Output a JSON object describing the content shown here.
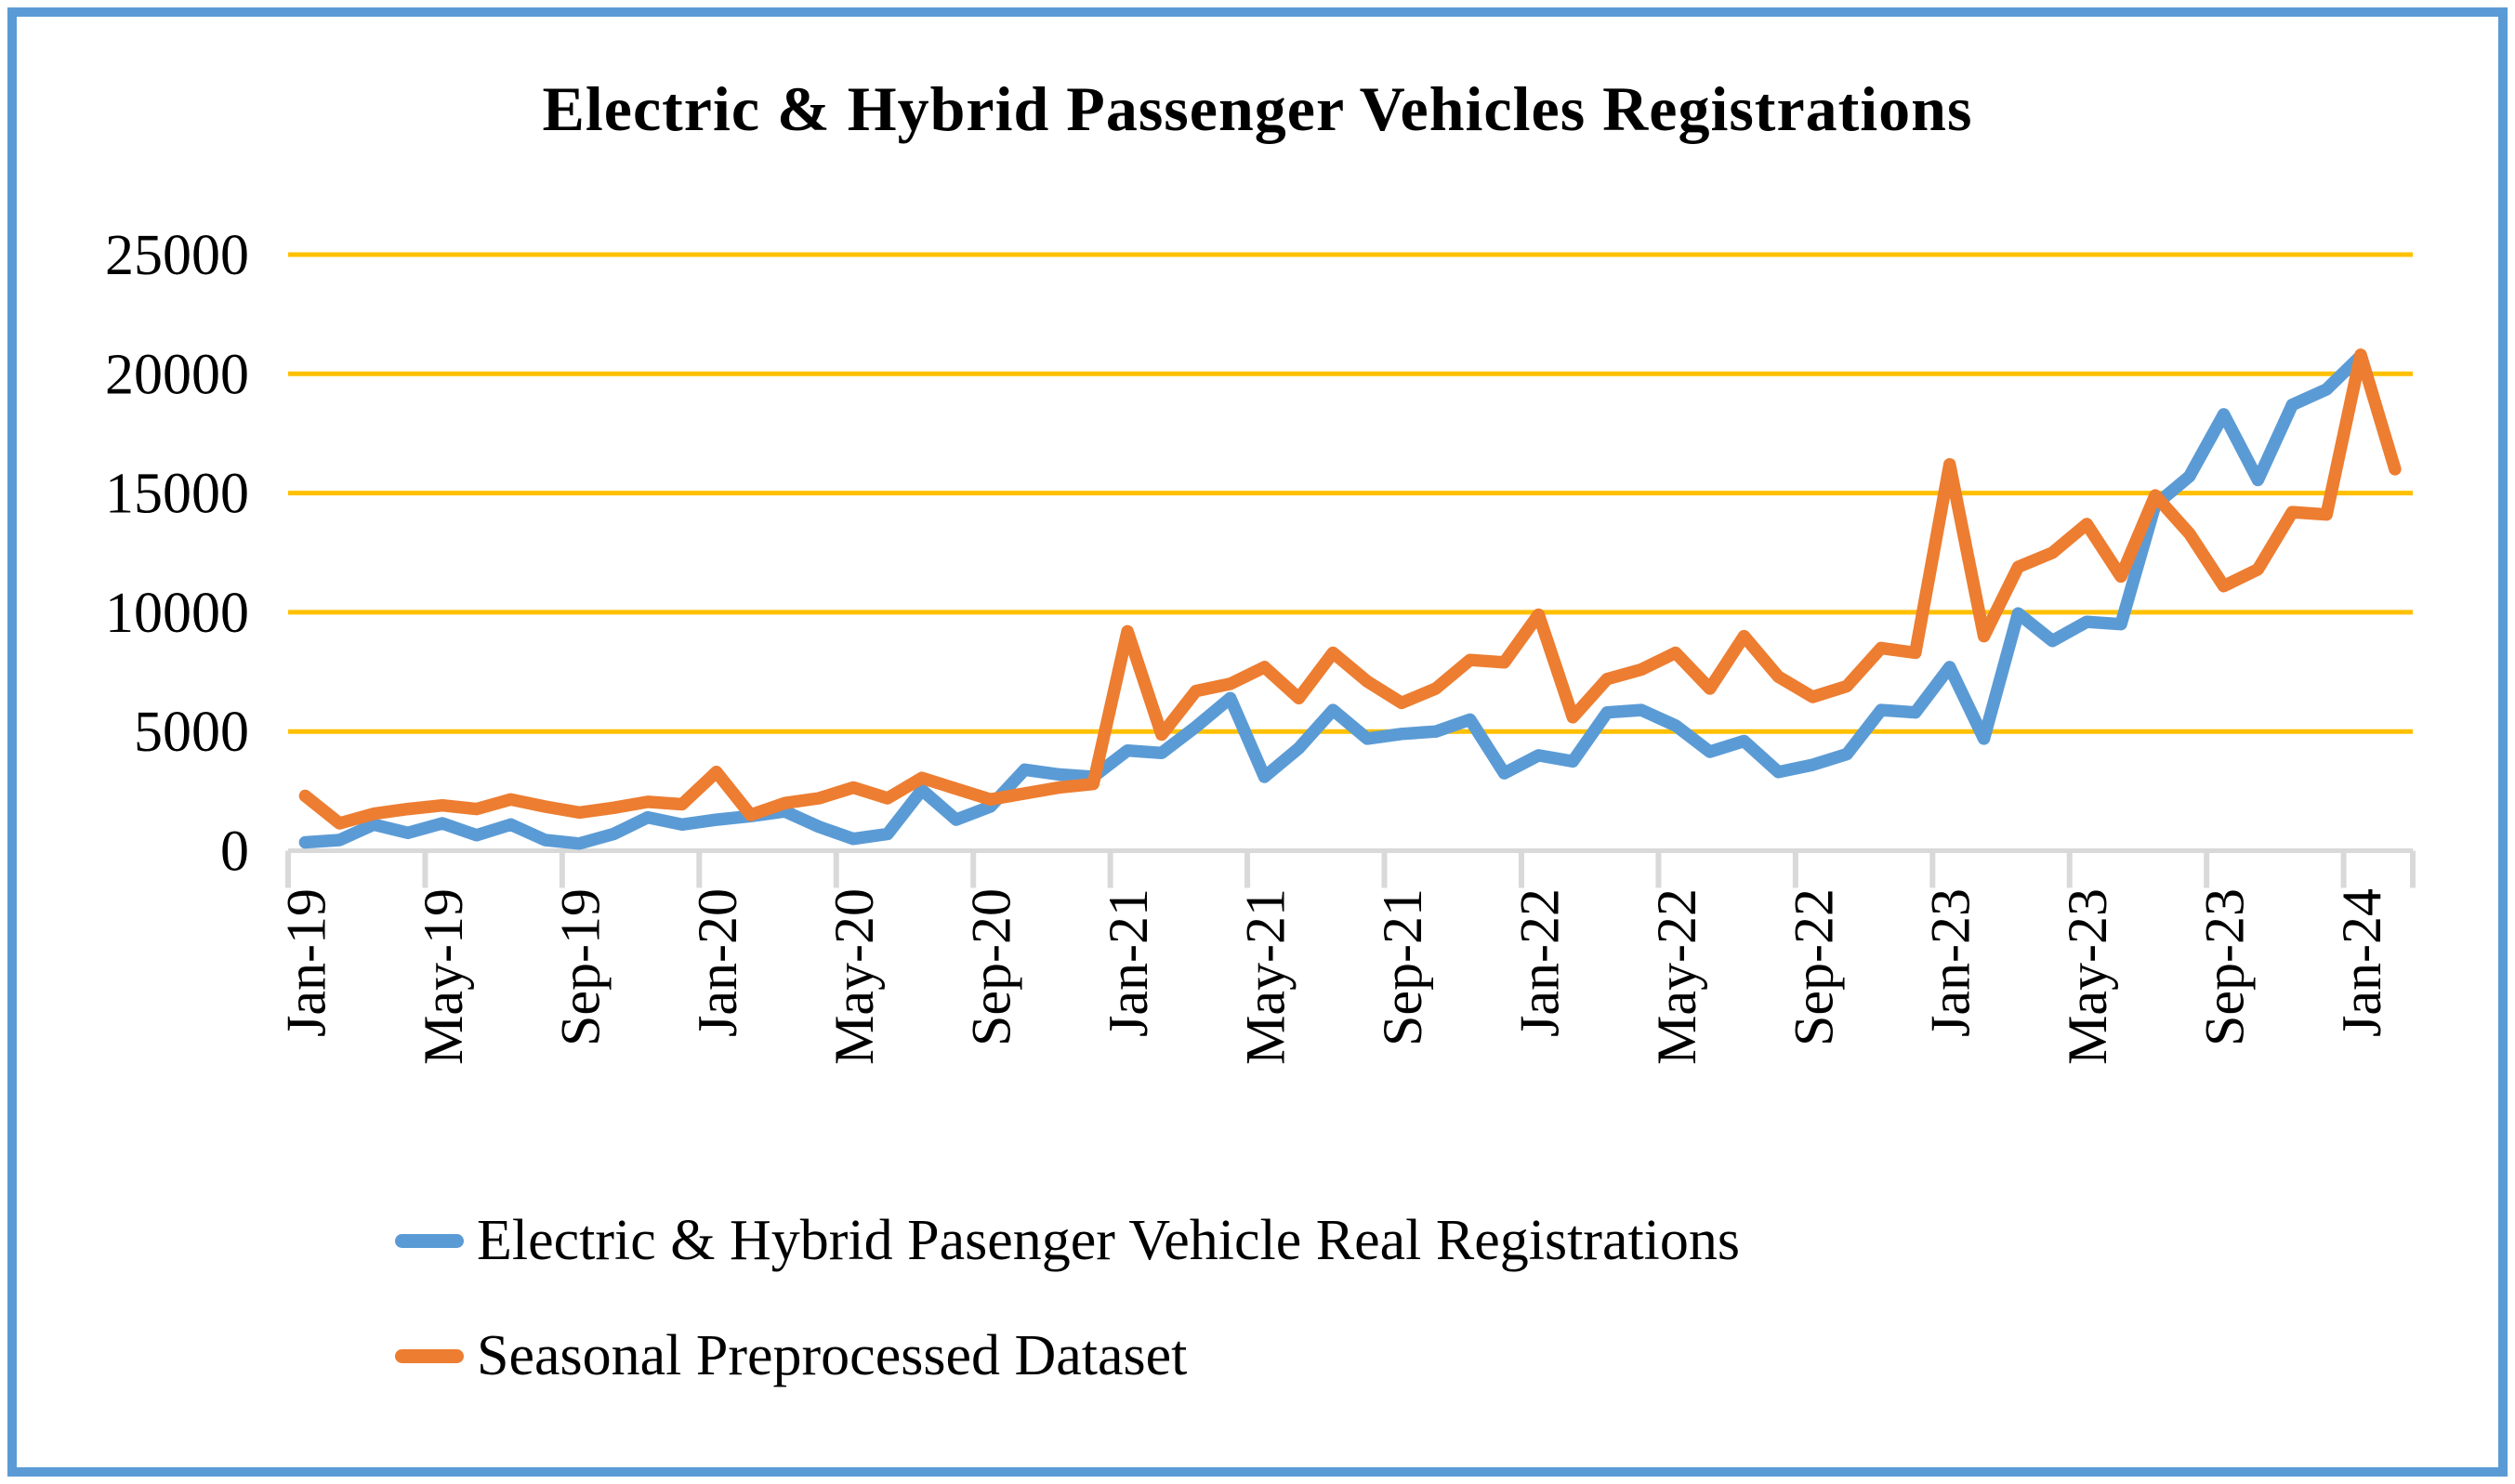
{
  "window": {
    "background": "#FFFFFF",
    "border_color": "#5B9BD5"
  },
  "chart_data": {
    "type": "line",
    "title": "Electric & Hybrid Passenger Vehicles Registrations",
    "xlabel": "",
    "ylabel": "",
    "ylim": [
      0,
      25000
    ],
    "y_ticks": [
      0,
      5000,
      10000,
      15000,
      20000,
      25000
    ],
    "grid": true,
    "gridline_color": "#FFC000",
    "axis_color": "#D9D9D9",
    "legend_position": "bottom-left",
    "x_tick_labels": [
      "Jan-19",
      "May-19",
      "Sep-19",
      "Jan-20",
      "May-20",
      "Sep-20",
      "Jan-21",
      "May-21",
      "Sep-21",
      "Jan-22",
      "May-22",
      "Sep-22",
      "Jan-23",
      "May-23",
      "Sep-23",
      "Jan-24"
    ],
    "categories": [
      "Jan-19",
      "Feb-19",
      "Mar-19",
      "Apr-19",
      "May-19",
      "Jun-19",
      "Jul-19",
      "Aug-19",
      "Sep-19",
      "Oct-19",
      "Nov-19",
      "Dec-19",
      "Jan-20",
      "Feb-20",
      "Mar-20",
      "Apr-20",
      "May-20",
      "Jun-20",
      "Jul-20",
      "Aug-20",
      "Sep-20",
      "Oct-20",
      "Nov-20",
      "Dec-20",
      "Jan-21",
      "Feb-21",
      "Mar-21",
      "Apr-21",
      "May-21",
      "Jun-21",
      "Jul-21",
      "Aug-21",
      "Sep-21",
      "Oct-21",
      "Nov-21",
      "Dec-21",
      "Jan-22",
      "Feb-22",
      "Mar-22",
      "Apr-22",
      "May-22",
      "Jun-22",
      "Jul-22",
      "Aug-22",
      "Sep-22",
      "Oct-22",
      "Nov-22",
      "Dec-22",
      "Jan-23",
      "Feb-23",
      "Mar-23",
      "Apr-23",
      "May-23",
      "Jun-23",
      "Jul-23",
      "Aug-23",
      "Sep-23",
      "Oct-23",
      "Nov-23",
      "Dec-23",
      "Jan-24",
      "Feb-24"
    ],
    "series": [
      {
        "name": "Electric & Hybrid Pasenger Vehicle Real Registrations",
        "color": "#5B9BD5",
        "values": [
          350,
          450,
          1100,
          750,
          1150,
          650,
          1100,
          450,
          300,
          700,
          1400,
          1100,
          1300,
          1450,
          1650,
          1000,
          500,
          700,
          2550,
          1300,
          1850,
          3400,
          3200,
          3100,
          4200,
          4100,
          5200,
          6400,
          3100,
          4300,
          5900,
          4700,
          4900,
          5000,
          5500,
          3250,
          4000,
          3750,
          5800,
          5900,
          5250,
          4150,
          4600,
          3300,
          3600,
          4050,
          5900,
          5800,
          7700,
          4700,
          9950,
          8800,
          9600,
          9500,
          14500,
          15700,
          18300,
          15550,
          18700,
          19350,
          20750,
          null
        ]
      },
      {
        "name": "Seasonal Preprocessed Dataset",
        "color": "#ED7D31",
        "values": [
          2300,
          1150,
          1550,
          1750,
          1900,
          1750,
          2150,
          1850,
          1600,
          1800,
          2050,
          1950,
          3300,
          1500,
          2000,
          2200,
          2650,
          2200,
          3050,
          2600,
          2150,
          2400,
          2650,
          2800,
          9200,
          4870,
          6700,
          7000,
          7700,
          6400,
          8300,
          7100,
          6200,
          6800,
          8000,
          7900,
          9900,
          5600,
          7200,
          7600,
          8300,
          6800,
          9000,
          7300,
          6450,
          6900,
          8500,
          8300,
          16200,
          9000,
          11900,
          12500,
          13700,
          11500,
          14900,
          13300,
          11100,
          11800,
          14200,
          14100,
          20800,
          16000
        ]
      }
    ]
  }
}
